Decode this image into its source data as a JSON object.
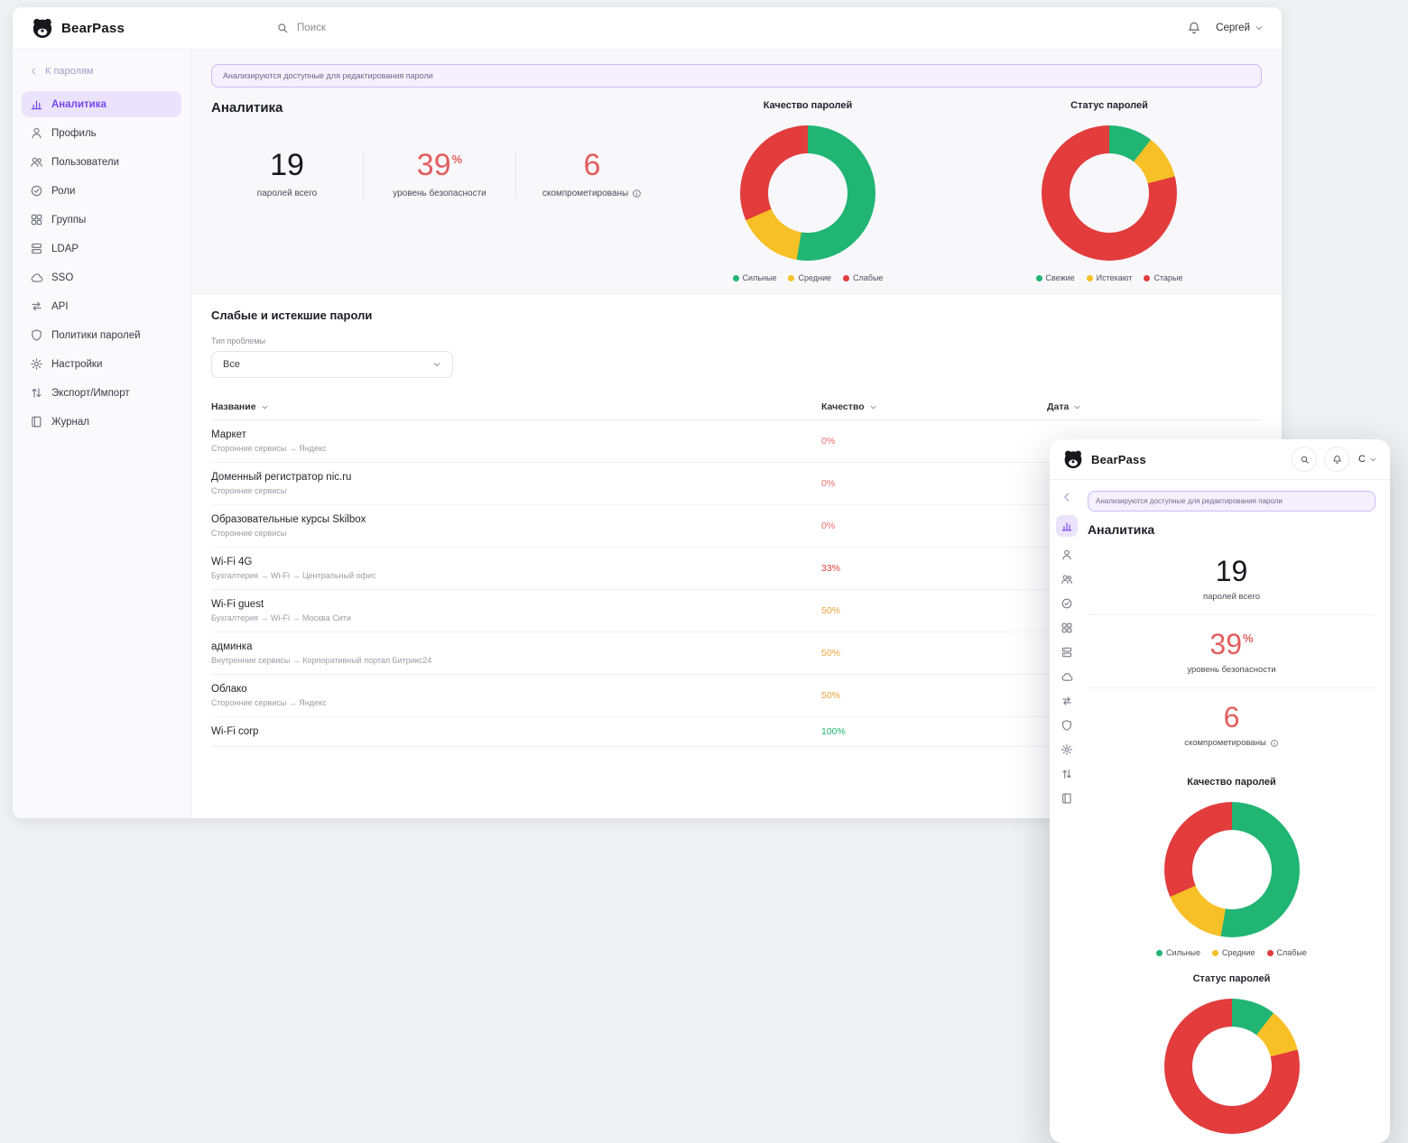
{
  "app": {
    "brand": "BearPass",
    "search_placeholder": "Поиск",
    "user_name": "Сергей",
    "user_initial": "С"
  },
  "banner": {
    "text": "Анализируются доступные для редактирования пароли"
  },
  "sidebar": {
    "back_label": "К паролям",
    "items": [
      {
        "label": "Аналитика",
        "icon": "analytics-icon",
        "active": true
      },
      {
        "label": "Профиль",
        "icon": "profile-icon",
        "active": false
      },
      {
        "label": "Пользователи",
        "icon": "users-icon",
        "active": false
      },
      {
        "label": "Роли",
        "icon": "roles-icon",
        "active": false
      },
      {
        "label": "Группы",
        "icon": "groups-icon",
        "active": false
      },
      {
        "label": "LDAP",
        "icon": "ldap-icon",
        "active": false
      },
      {
        "label": "SSO",
        "icon": "sso-icon",
        "active": false
      },
      {
        "label": "API",
        "icon": "api-icon",
        "active": false
      },
      {
        "label": "Политики паролей",
        "icon": "policies-icon",
        "active": false
      },
      {
        "label": "Настройки",
        "icon": "settings-icon",
        "active": false
      },
      {
        "label": "Экспорт/Импорт",
        "icon": "export-icon",
        "active": false
      },
      {
        "label": "Журнал",
        "icon": "journal-icon",
        "active": false
      }
    ]
  },
  "analytics": {
    "title": "Аналитика",
    "stats": [
      {
        "value": "19",
        "suffix": "",
        "label": "паролей всего",
        "color": "#17171e"
      },
      {
        "value": "39",
        "suffix": "%",
        "label": "уровень безопасности",
        "color": "#e25d5d"
      },
      {
        "value": "6",
        "suffix": "",
        "label": "скомпрометированы",
        "color": "#e25d5d"
      }
    ]
  },
  "chart_data": [
    {
      "type": "pie",
      "title": "Качество паролей",
      "labels": [
        "Сильные",
        "Средние",
        "Слабые"
      ],
      "values": [
        10,
        3,
        6
      ],
      "colors": [
        "#21b573",
        "#f6c026",
        "#e23c3c"
      ],
      "legend_position": "bottom"
    },
    {
      "type": "pie",
      "title": "Статус паролей",
      "labels": [
        "Свежие",
        "Истекают",
        "Старые"
      ],
      "values": [
        2,
        2,
        15
      ],
      "colors": [
        "#21b573",
        "#f6c026",
        "#e23c3c"
      ],
      "legend_position": "bottom"
    }
  ],
  "weak_section": {
    "title": "Слабые и истекшие пароли",
    "filter_label": "Тип проблемы",
    "filter_value": "Все",
    "columns": [
      "Название",
      "Качество",
      "Дата"
    ],
    "rows": [
      {
        "name": "Маркет",
        "path": "Сторонние сервисы → Яндекс",
        "quality": "0%",
        "quality_color": "#ee6a6a"
      },
      {
        "name": "Доменный регистратор nic.ru",
        "path": "Сторонние сервисы",
        "quality": "0%",
        "quality_color": "#ee6a6a"
      },
      {
        "name": "Образовательные курсы Skilbox",
        "path": "Сторонние сервисы",
        "quality": "0%",
        "quality_color": "#ee6a6a"
      },
      {
        "name": "Wi-Fi 4G",
        "path": "Бухгалтерия → Wi-Fi → Центральный офис",
        "quality": "33%",
        "quality_color": "#e2483c"
      },
      {
        "name": "Wi-Fi guest",
        "path": "Бухгалтерия → Wi-Fi → Москва Сити",
        "quality": "50%",
        "quality_color": "#eda33c"
      },
      {
        "name": "админка",
        "path": "Внутренние сервисы → Корпоративный портал Битрикс24",
        "quality": "50%",
        "quality_color": "#eda33c"
      },
      {
        "name": "Облако",
        "path": "Сторонние сервисы → Яндекс",
        "quality": "50%",
        "quality_color": "#eda33c"
      },
      {
        "name": "Wi-Fi corp",
        "path": "",
        "quality": "100%",
        "quality_color": "#21b573"
      }
    ]
  }
}
